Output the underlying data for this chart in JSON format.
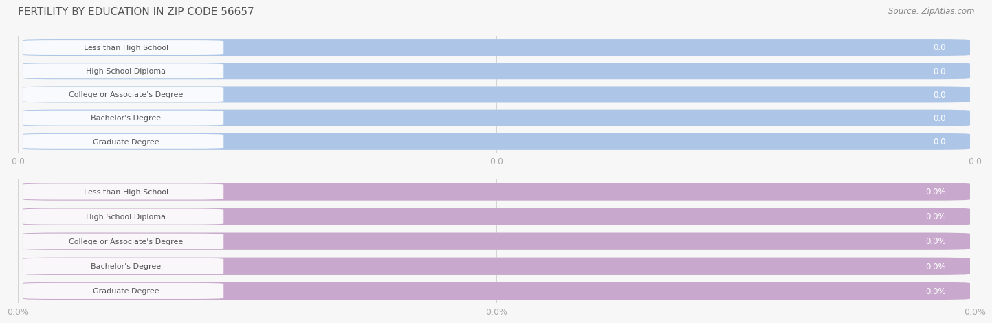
{
  "title": "FERTILITY BY EDUCATION IN ZIP CODE 56657",
  "source": "Source: ZipAtlas.com",
  "categories": [
    "Less than High School",
    "High School Diploma",
    "College or Associate's Degree",
    "Bachelor's Degree",
    "Graduate Degree"
  ],
  "values_top": [
    0.0,
    0.0,
    0.0,
    0.0,
    0.0
  ],
  "values_bottom": [
    0.0,
    0.0,
    0.0,
    0.0,
    0.0
  ],
  "top_bar_color": "#adc6e8",
  "bottom_bar_color": "#c8a8cc",
  "bg_color": "#f7f7f7",
  "row_gap_color": "#e0e0e0",
  "bar_bg_color": "#ebebeb",
  "title_color": "#555555",
  "source_color": "#888888",
  "label_text_color": "#555555",
  "value_text_color_top": "#ffffff",
  "value_text_color_bottom": "#ffffff",
  "tick_color": "#aaaaaa",
  "xtick_labels_top": [
    "0.0",
    "0.0",
    "0.0"
  ],
  "xtick_labels_bottom": [
    "0.0%",
    "0.0%",
    "0.0%"
  ],
  "figsize": [
    14.06,
    4.75
  ],
  "dpi": 100
}
